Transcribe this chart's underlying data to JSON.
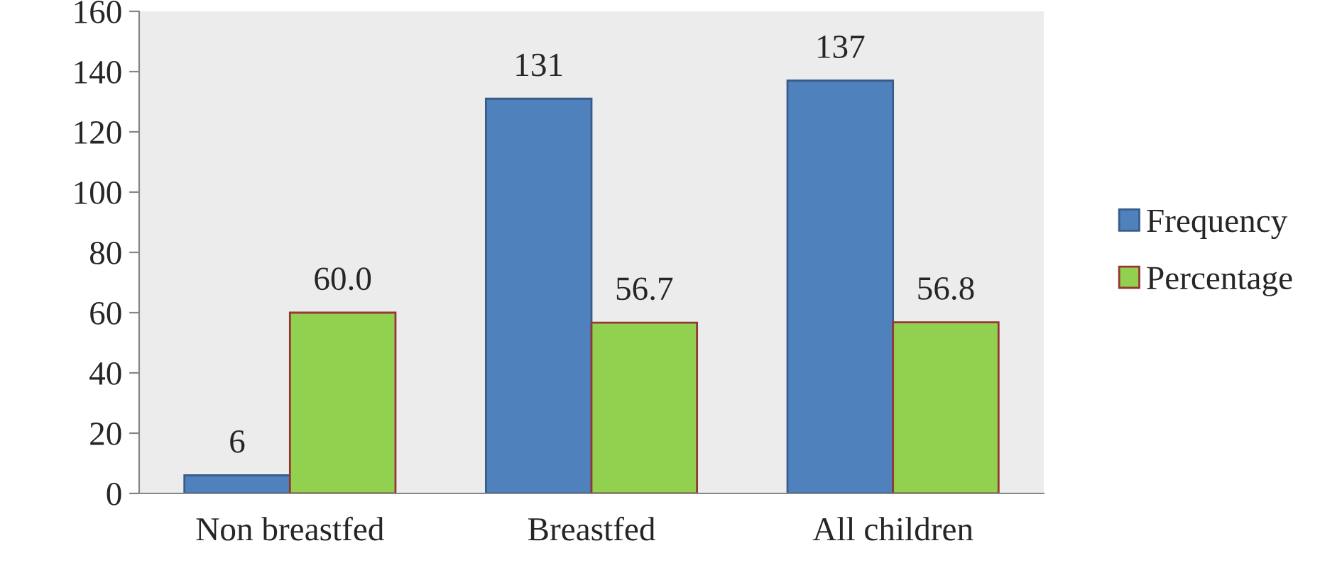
{
  "chart_data": {
    "type": "bar",
    "categories": [
      "Non breastfed",
      "Breastfed",
      "All children"
    ],
    "series": [
      {
        "name": "Frequency",
        "color": "#4f81bd",
        "values": [
          6,
          131,
          137
        ],
        "value_labels": [
          "6",
          "131",
          "137"
        ]
      },
      {
        "name": "Percentage",
        "color": "#92d050",
        "values": [
          60.0,
          56.7,
          56.8
        ],
        "value_labels": [
          "60.0",
          "56.7",
          "56.8"
        ]
      }
    ],
    "ylim": [
      0,
      160
    ],
    "yticks": [
      0,
      20,
      40,
      60,
      80,
      100,
      120,
      140,
      160
    ],
    "grid": false,
    "legend": "right"
  }
}
